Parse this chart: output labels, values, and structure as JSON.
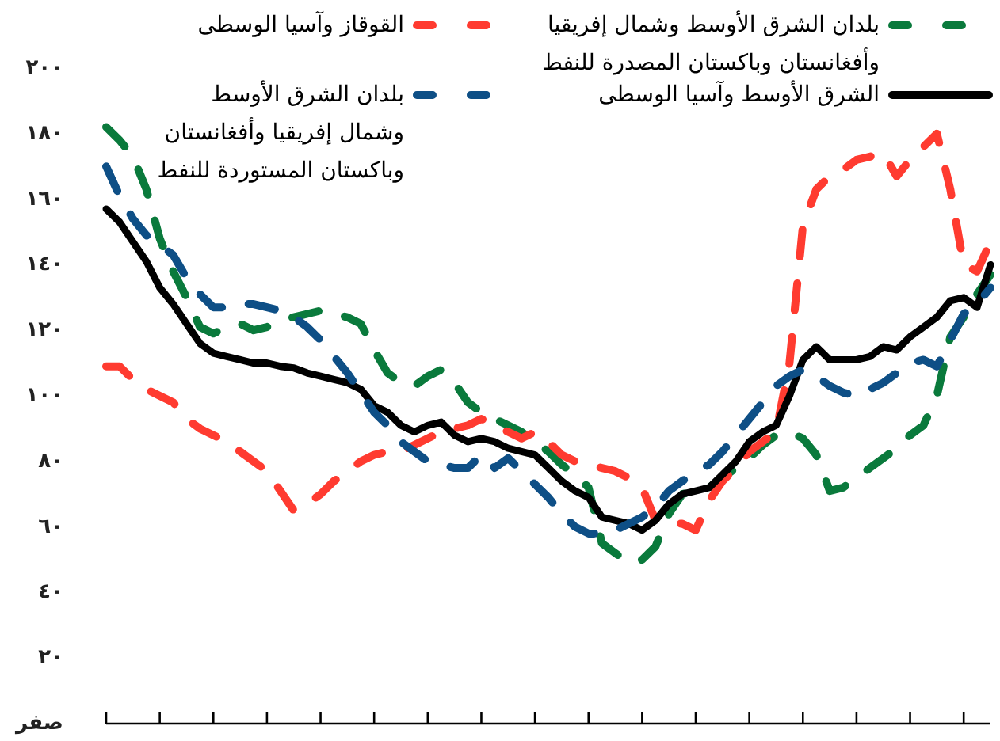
{
  "chart_data": {
    "type": "line",
    "legend": "top",
    "tick_labels": "y",
    "ylim": [
      0,
      200
    ],
    "yticks": [
      {
        "value": 0,
        "label": "صفر"
      },
      {
        "value": 20,
        "label": "٢٠"
      },
      {
        "value": 40,
        "label": "٤٠"
      },
      {
        "value": 60,
        "label": "٦٠"
      },
      {
        "value": 80,
        "label": "٨٠"
      },
      {
        "value": 100,
        "label": "١٠٠"
      },
      {
        "value": 120,
        "label": "١٢٠"
      },
      {
        "value": 140,
        "label": "١٤٠"
      },
      {
        "value": 160,
        "label": "١٦٠"
      },
      {
        "value": 180,
        "label": "١٨٠"
      },
      {
        "value": 200,
        "label": "٢٠٠"
      }
    ],
    "categories": [
      null,
      null,
      null,
      null,
      null,
      null,
      null,
      null,
      null,
      null,
      null,
      null,
      null,
      null,
      null,
      null,
      null,
      null,
      null,
      null,
      null,
      null,
      null,
      null,
      null,
      null,
      null,
      null,
      null,
      null,
      null,
      null,
      null,
      null,
      null,
      null,
      null,
      null,
      null,
      null,
      null,
      null,
      null,
      null,
      null,
      null,
      null,
      null,
      null,
      null,
      null,
      null,
      null,
      null,
      null,
      null,
      null,
      null,
      null,
      null,
      null,
      null,
      null,
      null,
      null,
      null,
      null
    ],
    "series": [
      {
        "name": "بلدان الشرق الأوسط وشمال إفريقيا وأفغانستان وباكستان المصدرة للنفط",
        "color": "#0a7a3c",
        "line_style": "dashed",
        "values": [
          182,
          178,
          173,
          163,
          148,
          138,
          130,
          121,
          119,
          121,
          122,
          120,
          121,
          123,
          124,
          125,
          126,
          125,
          124,
          122,
          114,
          107,
          104,
          103,
          106,
          108,
          104,
          98,
          95,
          93,
          91,
          89,
          86,
          83,
          79,
          76,
          72,
          55,
          52,
          49,
          50,
          54,
          64,
          70,
          71,
          72,
          75,
          78,
          81,
          85,
          88,
          89,
          87,
          82,
          71,
          72,
          75,
          78,
          81,
          84,
          88,
          91,
          100,
          118,
          124,
          131,
          137
        ]
      },
      {
        "name": "القوقاز وآسيا الوسطى",
        "color": "#ff3b30",
        "line_style": "dashed",
        "values": [
          109,
          109,
          105,
          102,
          100,
          98,
          93,
          90,
          88,
          86,
          83,
          80,
          77,
          71,
          65,
          67,
          70,
          74,
          77,
          80,
          82,
          83,
          83,
          85,
          87,
          89,
          90,
          91,
          93,
          91,
          89,
          87,
          89,
          86,
          82,
          80,
          79,
          78,
          77,
          75,
          72,
          62,
          61,
          61,
          59,
          68,
          74,
          78,
          83,
          86,
          89,
          110,
          152,
          163,
          167,
          169,
          172,
          173,
          174,
          167,
          172,
          176,
          180,
          163,
          140,
          138,
          147
        ]
      },
      {
        "name": "الشرق الأوسط وآسيا الوسطى",
        "color": "#000000",
        "line_style": "solid",
        "values": [
          157,
          153,
          147,
          141,
          133,
          128,
          122,
          116,
          113,
          112,
          111,
          110,
          110,
          109,
          108.5,
          107,
          106,
          105,
          104,
          102,
          97,
          95,
          91,
          89,
          91,
          92,
          88,
          86,
          87,
          86,
          84,
          83,
          82,
          78,
          74,
          71,
          69,
          63,
          62,
          61,
          59,
          62,
          67,
          70,
          71,
          72,
          76,
          80,
          86,
          89,
          91,
          100,
          111,
          115,
          111,
          111,
          111,
          112,
          115,
          114,
          118,
          121,
          124,
          129,
          130,
          127,
          140
        ]
      },
      {
        "name": "بلدان الشرق الأوسط وشمال إفريقيا وأفغانستان وباكستان المستوردة للنفط",
        "color": "#0e4f86",
        "line_style": "dashed",
        "values": [
          170,
          161,
          154,
          149,
          146,
          143,
          136,
          131,
          127,
          127,
          128,
          128,
          127,
          126,
          124,
          121,
          117,
          112,
          107,
          101,
          95,
          91,
          86,
          83,
          80,
          79,
          78,
          78,
          82,
          78,
          81,
          77,
          73,
          69,
          64,
          60,
          58,
          58,
          59,
          61,
          63,
          66,
          71,
          74,
          77,
          79,
          83,
          88,
          93,
          98,
          103,
          106,
          108,
          106,
          103,
          101,
          100,
          102,
          104,
          107,
          110,
          111,
          109,
          117,
          125,
          128,
          133
        ]
      }
    ]
  }
}
